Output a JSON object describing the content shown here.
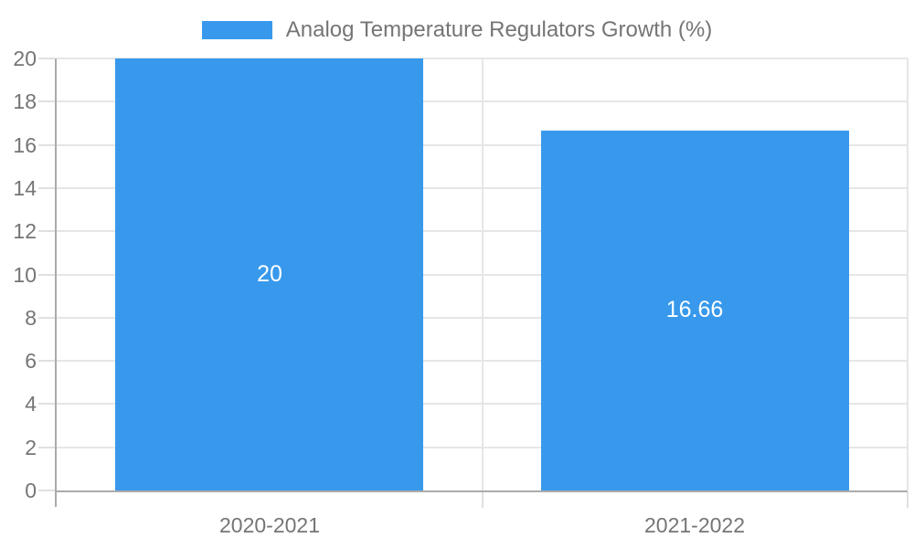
{
  "chart_data": {
    "type": "bar",
    "title": "Analog Temperature Regulators Growth (%)",
    "legend": {
      "label": "Analog Temperature Regulators Growth (%)",
      "position": "top"
    },
    "categories": [
      "2020-2021",
      "2021-2022"
    ],
    "series": [
      {
        "name": "Analog Temperature Regulators Growth (%)",
        "values": [
          20,
          16.66
        ],
        "data_labels": [
          "20",
          "16.66"
        ]
      }
    ],
    "xlabel": "",
    "ylabel": "",
    "ylim": [
      0,
      20
    ],
    "ytick_step": 2,
    "ytick_labels": [
      "0",
      "2",
      "4",
      "6",
      "8",
      "10",
      "12",
      "14",
      "16",
      "18",
      "20"
    ],
    "grid": true,
    "colors": {
      "bar": "#3899EC",
      "grid": "#E6E6E6",
      "axis": "#ABABAB",
      "tick": "#E0E0E0",
      "axis_label": "#757575",
      "legend_text": "#757575",
      "bar_label": "#FFFFFF",
      "background": "#FFFFFF"
    }
  }
}
